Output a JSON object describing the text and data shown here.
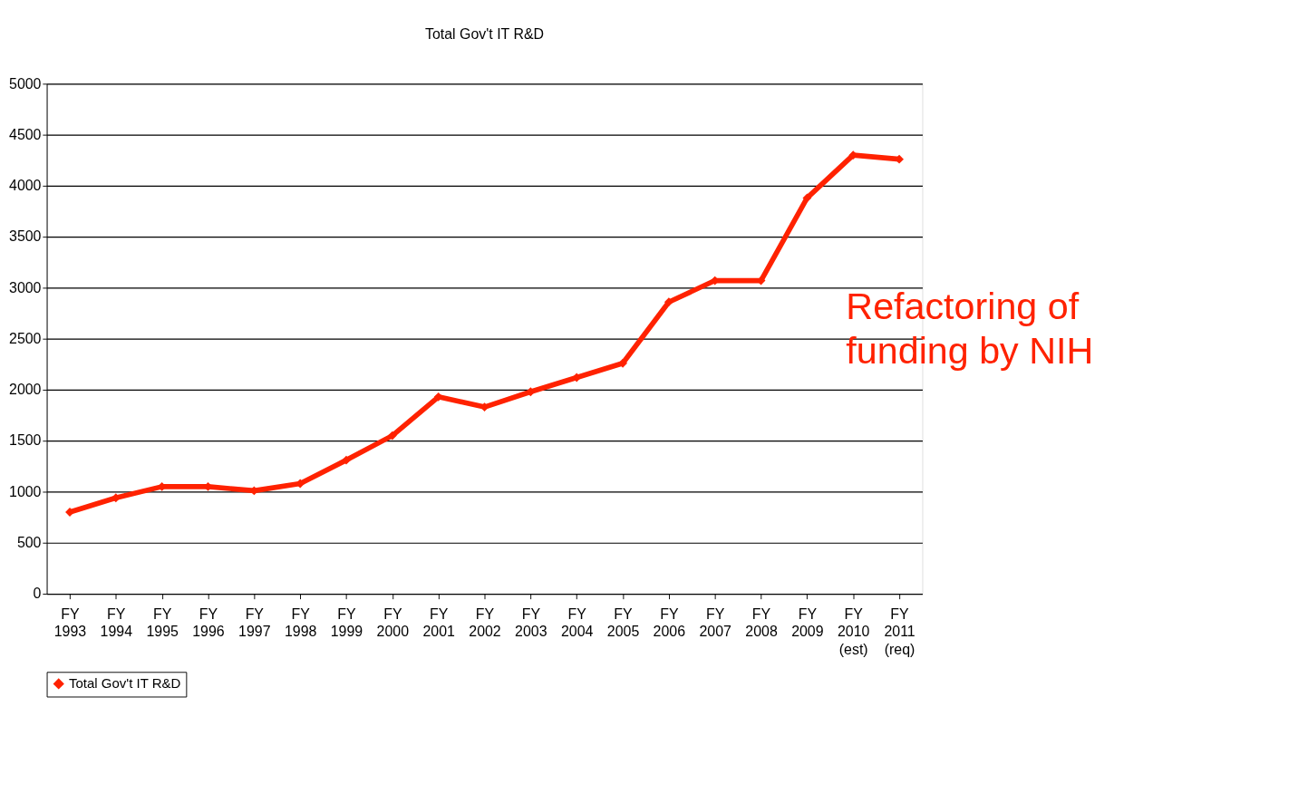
{
  "chart_data": {
    "type": "line",
    "title": "Total Gov't IT R&D",
    "categories": [
      "FY 1993",
      "FY 1994",
      "FY 1995",
      "FY 1996",
      "FY 1997",
      "FY 1998",
      "FY 1999",
      "FY 2000",
      "FY 2001",
      "FY 2002",
      "FY 2003",
      "FY 2004",
      "FY 2005",
      "FY 2006",
      "FY 2007",
      "FY 2008",
      "FY 2009",
      "FY 2010 (est)",
      "FY 2011 (req)"
    ],
    "series": [
      {
        "name": "Total Gov't IT R&D",
        "color": "#ff2200",
        "values": [
          800,
          940,
          1050,
          1050,
          1010,
          1080,
          1310,
          1550,
          1930,
          1830,
          1980,
          2120,
          2260,
          2860,
          3070,
          3070,
          3880,
          4300,
          4260
        ]
      }
    ],
    "ylim": [
      0,
      5000
    ],
    "yticks": [
      0,
      500,
      1000,
      1500,
      2000,
      2500,
      3000,
      3500,
      4000,
      4500,
      5000
    ],
    "grid": "y",
    "legend": "bottom",
    "marker": "diamond",
    "line_style": "solid",
    "annotations": [
      {
        "text": "Refactoring of funding by NIH",
        "x": "FY 2008",
        "y": 3070
      }
    ]
  }
}
